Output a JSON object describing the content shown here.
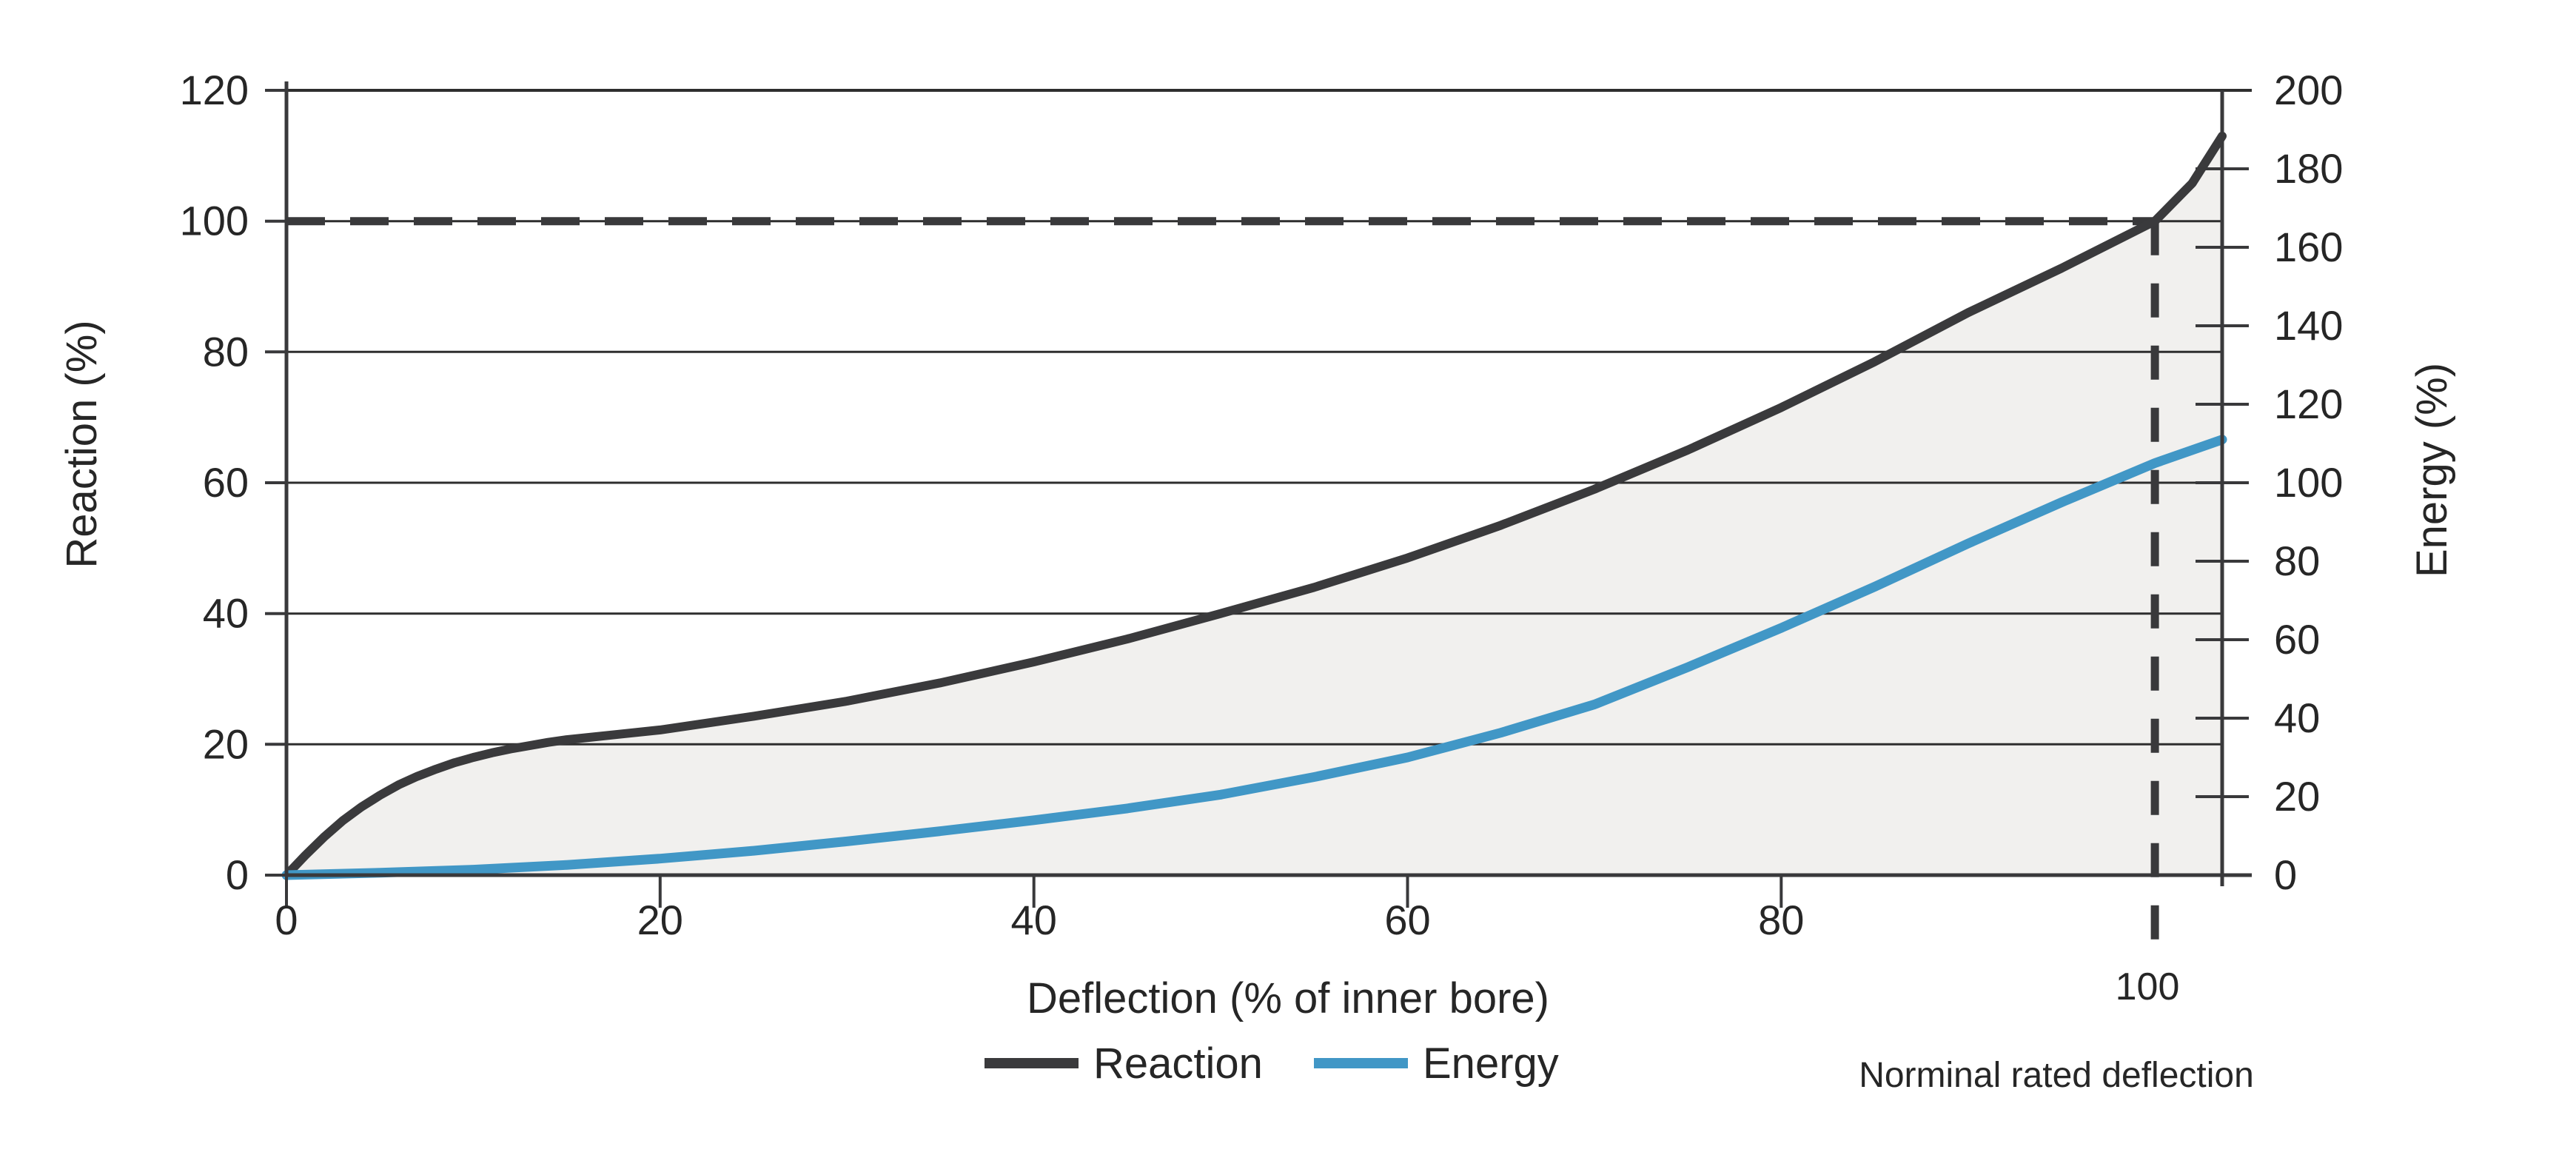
{
  "chart_data": {
    "type": "line",
    "title": "",
    "xlabel": "Deflection (% of inner bore)",
    "ylabel_left": "Reaction (%)",
    "ylabel_right": "Energy (%)",
    "xlim": [
      0,
      103.6
    ],
    "ylim_left": [
      0,
      120
    ],
    "ylim_right": [
      0,
      200
    ],
    "x_tick_values": [
      0,
      20,
      40,
      60,
      80
    ],
    "x_tick_labels": [
      "0",
      "20",
      "40",
      "60",
      "80"
    ],
    "left_tick_values": [
      0,
      20,
      40,
      60,
      80,
      100,
      120
    ],
    "left_tick_labels": [
      "0",
      "20",
      "40",
      "60",
      "80",
      "100",
      "120"
    ],
    "right_tick_values": [
      0,
      20,
      40,
      60,
      80,
      100,
      120,
      140,
      160,
      180,
      200
    ],
    "right_tick_labels": [
      "0",
      "20",
      "40",
      "60",
      "80",
      "100",
      "120",
      "140",
      "160",
      "180",
      "200"
    ],
    "grid": "horizontal gridlines only, at left-axis steps of 20",
    "legend_position": "bottom center",
    "colors": {
      "reaction": "#3a3a3c",
      "energy": "#4197c6",
      "fill_under_reaction": "#f1f0ee",
      "gridline": "#2e2e2e",
      "axis": "#39393b",
      "dashed": "#39393b",
      "text": "#262626"
    },
    "rated_deflection": {
      "x": 100,
      "reaction_y": 100,
      "tick_label": "100",
      "annotation": "Norminal rated deflection"
    },
    "series": [
      {
        "name": "Reaction",
        "axis": "left",
        "color": "#3a3a3c",
        "x": [
          0,
          1,
          2,
          3,
          4,
          5,
          6,
          7,
          8,
          9,
          10,
          11,
          12,
          13,
          14,
          15,
          16,
          18,
          20,
          25,
          30,
          35,
          40,
          45,
          50,
          55,
          60,
          65,
          70,
          75,
          80,
          85,
          90,
          95,
          100,
          102,
          103.6
        ],
        "y": [
          0,
          3,
          5.8,
          8.3,
          10.4,
          12.2,
          13.8,
          15.1,
          16.2,
          17.2,
          18,
          18.7,
          19.3,
          19.8,
          20.3,
          20.7,
          21,
          21.6,
          22.2,
          24.3,
          26.6,
          29.4,
          32.6,
          36.1,
          40,
          44,
          48.5,
          53.5,
          59,
          65,
          71.5,
          78.5,
          86,
          92.8,
          100,
          105.8,
          113
        ]
      },
      {
        "name": "Energy",
        "axis": "right",
        "color": "#4197c6",
        "x": [
          0,
          5,
          10,
          15,
          20,
          25,
          30,
          35,
          40,
          45,
          50,
          55,
          60,
          65,
          70,
          75,
          80,
          85,
          90,
          95,
          100,
          103.6
        ],
        "y": [
          0,
          0.6,
          1.4,
          2.6,
          4.2,
          6.2,
          8.6,
          11.2,
          14,
          17,
          20.5,
          25,
          30,
          36.3,
          43.5,
          53,
          63,
          73.5,
          84.5,
          95,
          105,
          111
        ]
      }
    ]
  }
}
